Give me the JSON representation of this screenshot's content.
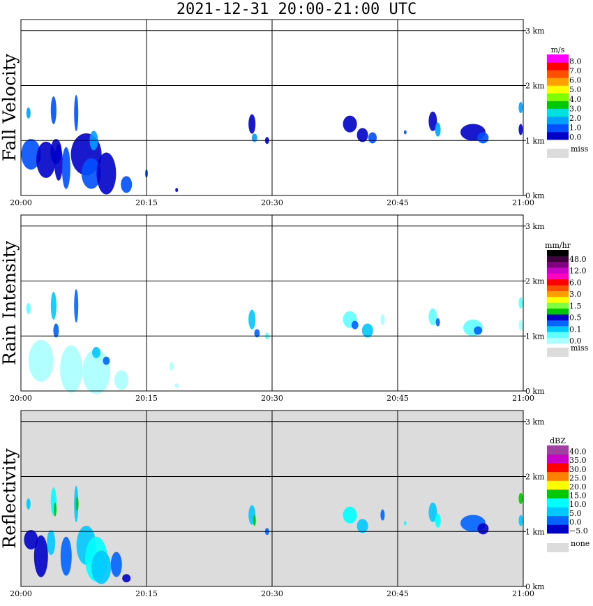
{
  "title": "2021-12-31   20:00-21:00 UTC",
  "chart_data": [
    {
      "type": "heatmap",
      "ylabel": "Fall Velocity",
      "xticks": [
        "20:00",
        "20:15",
        "20:30",
        "20:45",
        "21:00"
      ],
      "yticks": [
        "0 km",
        "1 km",
        "2 km",
        "3 km"
      ],
      "ylim": [
        0,
        3.2
      ],
      "grid": true,
      "colorbar": {
        "unit": "m/s",
        "colors": [
          "#0000c8",
          "#0050ff",
          "#00a0ff",
          "#00e0e0",
          "#00c800",
          "#80ff00",
          "#ffff00",
          "#ffa000",
          "#ff5000",
          "#ff0000",
          "#ff00ff"
        ],
        "labels": [
          "8.0",
          "7.0",
          "6.0",
          "5.0",
          "4.0",
          "3.0",
          "2.0",
          "1.0",
          "0.0"
        ],
        "miss_color": "#dcdcdc",
        "miss_label": "miss"
      }
    },
    {
      "type": "heatmap",
      "ylabel": "Rain Intensity",
      "xticks": [
        "20:00",
        "20:15",
        "20:30",
        "20:45",
        "21:00"
      ],
      "yticks": [
        "0 km",
        "1 km",
        "2 km",
        "3 km"
      ],
      "ylim": [
        0,
        3.2
      ],
      "grid": true,
      "colorbar": {
        "unit": "mm/hr",
        "colors": [
          "#aaffff",
          "#60ffff",
          "#00c8ff",
          "#0064ff",
          "#0000c8",
          "#00c800",
          "#80ff40",
          "#ffff00",
          "#ffa000",
          "#ff5000",
          "#ff0000",
          "#ff00c0",
          "#c800c8",
          "#800080",
          "#400040",
          "#000000"
        ],
        "labels": [
          "48.0",
          "12.0",
          "6.0",
          "3.0",
          "1.5",
          "0.5",
          "0.1",
          "0.0"
        ],
        "miss_color": "#dcdcdc",
        "miss_label": "miss"
      }
    },
    {
      "type": "heatmap",
      "ylabel": "Reflectivity",
      "xticks": [
        "20:00",
        "20:15",
        "20:30",
        "20:45",
        "21:00"
      ],
      "yticks": [
        "0 km",
        "1 km",
        "2 km",
        "3 km"
      ],
      "ylim": [
        0,
        3.2
      ],
      "grid": true,
      "background": "#dcdcdc",
      "colorbar": {
        "unit": "dBZ",
        "colors": [
          "#0000c8",
          "#0064ff",
          "#00c8ff",
          "#00ffff",
          "#00c800",
          "#ffff00",
          "#ff8000",
          "#ff0000",
          "#c800c8",
          "#a040a0"
        ],
        "labels": [
          "40.0",
          "35.0",
          "30.0",
          "25.0",
          "20.0",
          "15.0",
          "10.0",
          "5.0",
          "0.0",
          "−5.0"
        ],
        "miss_color": "#dcdcdc",
        "miss_label": "none"
      }
    }
  ]
}
